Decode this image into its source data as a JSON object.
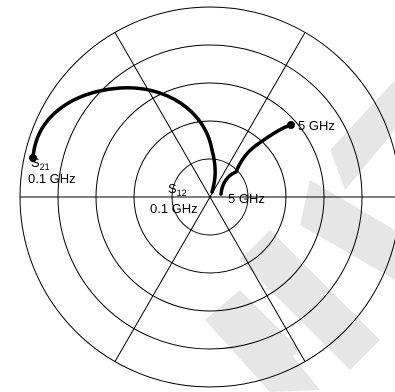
{
  "labels": {
    "s21": {
      "main": "S",
      "sub": "21",
      "freq": "0.1 GHz"
    },
    "s12": {
      "main": "S",
      "sub": "12",
      "freq": "0.1 GHz"
    },
    "end_s21": "5 GHz",
    "end_s12": "5 GHz"
  },
  "colors": {
    "grid": "#000000",
    "trace": "#000000",
    "watermark": "#e6e6e6"
  }
}
